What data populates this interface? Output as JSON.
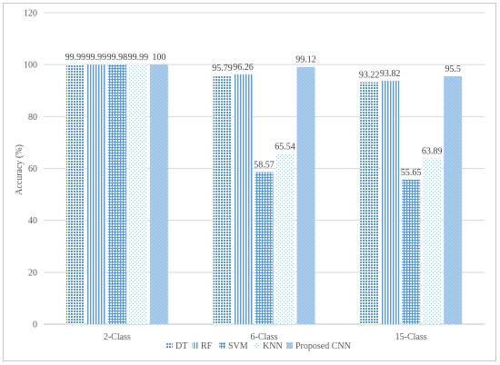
{
  "chart_data": {
    "type": "bar",
    "title": "",
    "xlabel": "",
    "ylabel": "Accuracy (%)",
    "ylim": [
      0,
      120
    ],
    "yticks": [
      0,
      20,
      40,
      60,
      80,
      100,
      120
    ],
    "categories": [
      "2-Class",
      "6-Class",
      "15-Class"
    ],
    "series": [
      {
        "name": "DT",
        "values": [
          99.99,
          95.79,
          93.22
        ],
        "value_labels": [
          "99.99",
          "95.79",
          "93.22"
        ]
      },
      {
        "name": "RF",
        "values": [
          99.99,
          96.26,
          93.82
        ],
        "value_labels": [
          "99.99",
          "96.26",
          "93.82"
        ]
      },
      {
        "name": "SVM",
        "values": [
          99.98,
          58.57,
          55.65
        ],
        "value_labels": [
          "99.98",
          "58.57",
          "55.65"
        ]
      },
      {
        "name": "KNN",
        "values": [
          99.99,
          65.54,
          63.89
        ],
        "value_labels": [
          "99.99",
          "65.54",
          "63.89"
        ]
      },
      {
        "name": "Proposed CNN",
        "values": [
          100,
          99.12,
          95.5
        ],
        "value_labels": [
          "100",
          "99.12",
          "95.5"
        ]
      }
    ],
    "grid": true,
    "legend_position": "bottom",
    "colors": {
      "bar_blue": "#5b9bd5",
      "bar_light": "#9dc3e6",
      "grid": "#d9d9d9",
      "axis": "#bfbfbf",
      "text": "#595959"
    }
  }
}
